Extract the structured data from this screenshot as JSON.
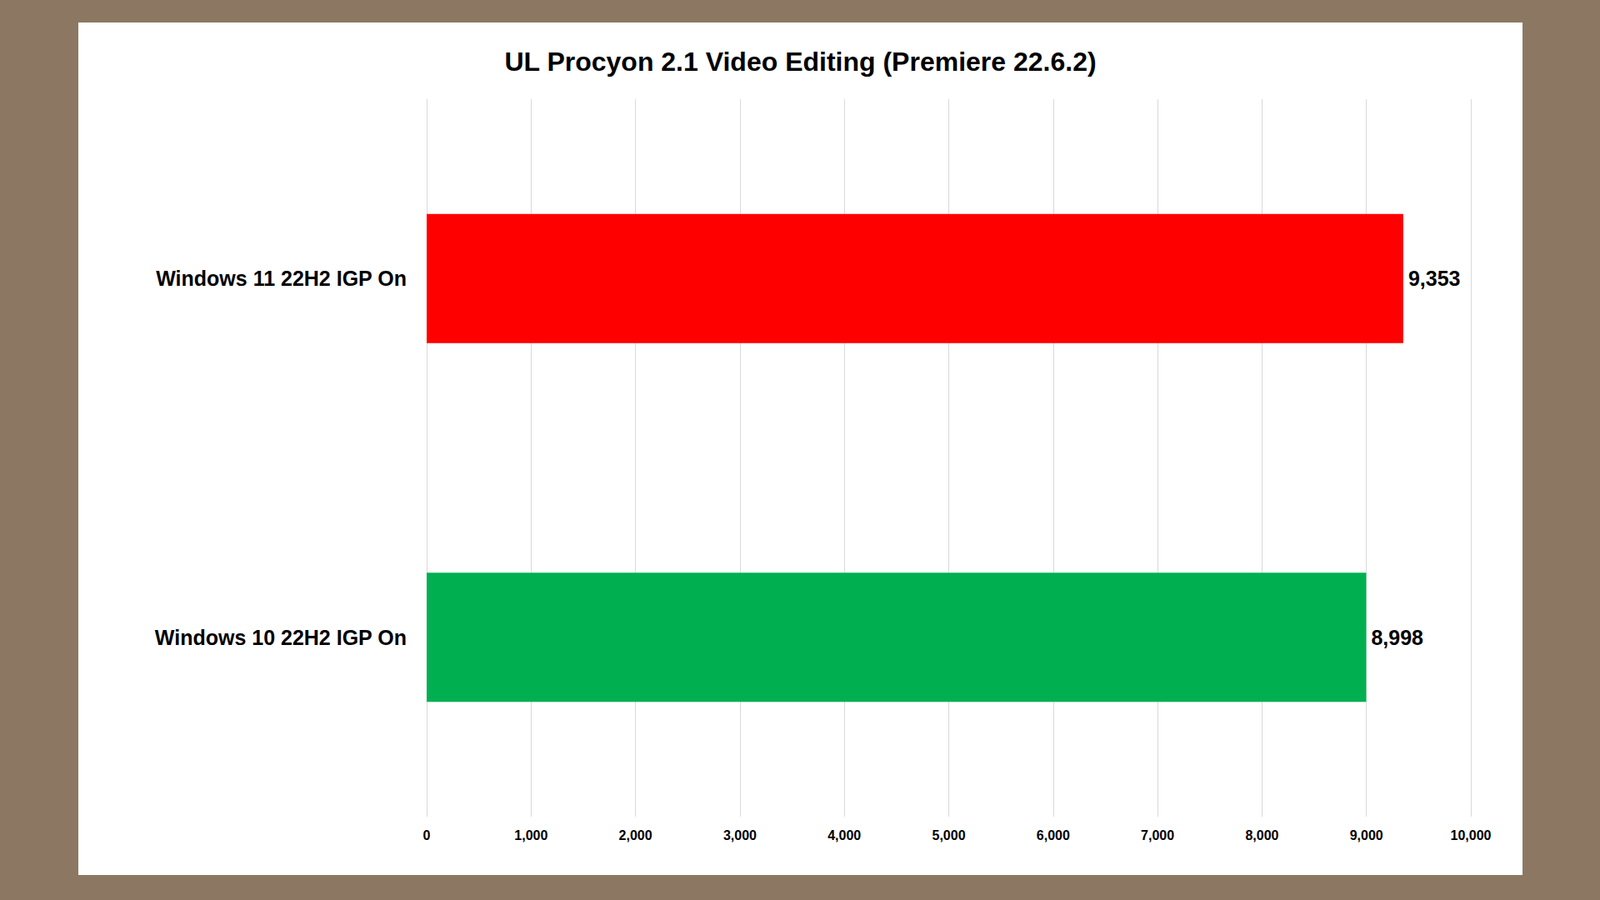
{
  "chart_data": {
    "type": "bar",
    "orientation": "horizontal",
    "title": "UL Procyon 2.1 Video Editing (Premiere 22.6.2)",
    "categories": [
      "Windows 11 22H2 IGP On",
      "Windows 10 22H2 IGP On"
    ],
    "values": [
      9353,
      8998
    ],
    "value_labels": [
      "9,353",
      "8,998"
    ],
    "colors": [
      "#ff0000",
      "#00b050"
    ],
    "xlim": [
      0,
      10000
    ],
    "xticks": [
      0,
      {
        "value": 1000,
        "label": "1,000"
      },
      {
        "value": 2000,
        "label": "2,000"
      },
      {
        "value": 3000,
        "label": "3,000"
      },
      {
        "value": 4000,
        "label": "4,000"
      },
      {
        "value": 5000,
        "label": "5,000"
      },
      {
        "value": 6000,
        "label": "6,000"
      },
      {
        "value": 7000,
        "label": "7,000"
      },
      {
        "value": 8000,
        "label": "8,000"
      },
      {
        "value": 9000,
        "label": "9,000"
      },
      {
        "value": 10000,
        "label": "10,000"
      }
    ],
    "grid": true,
    "data_labels": true
  }
}
